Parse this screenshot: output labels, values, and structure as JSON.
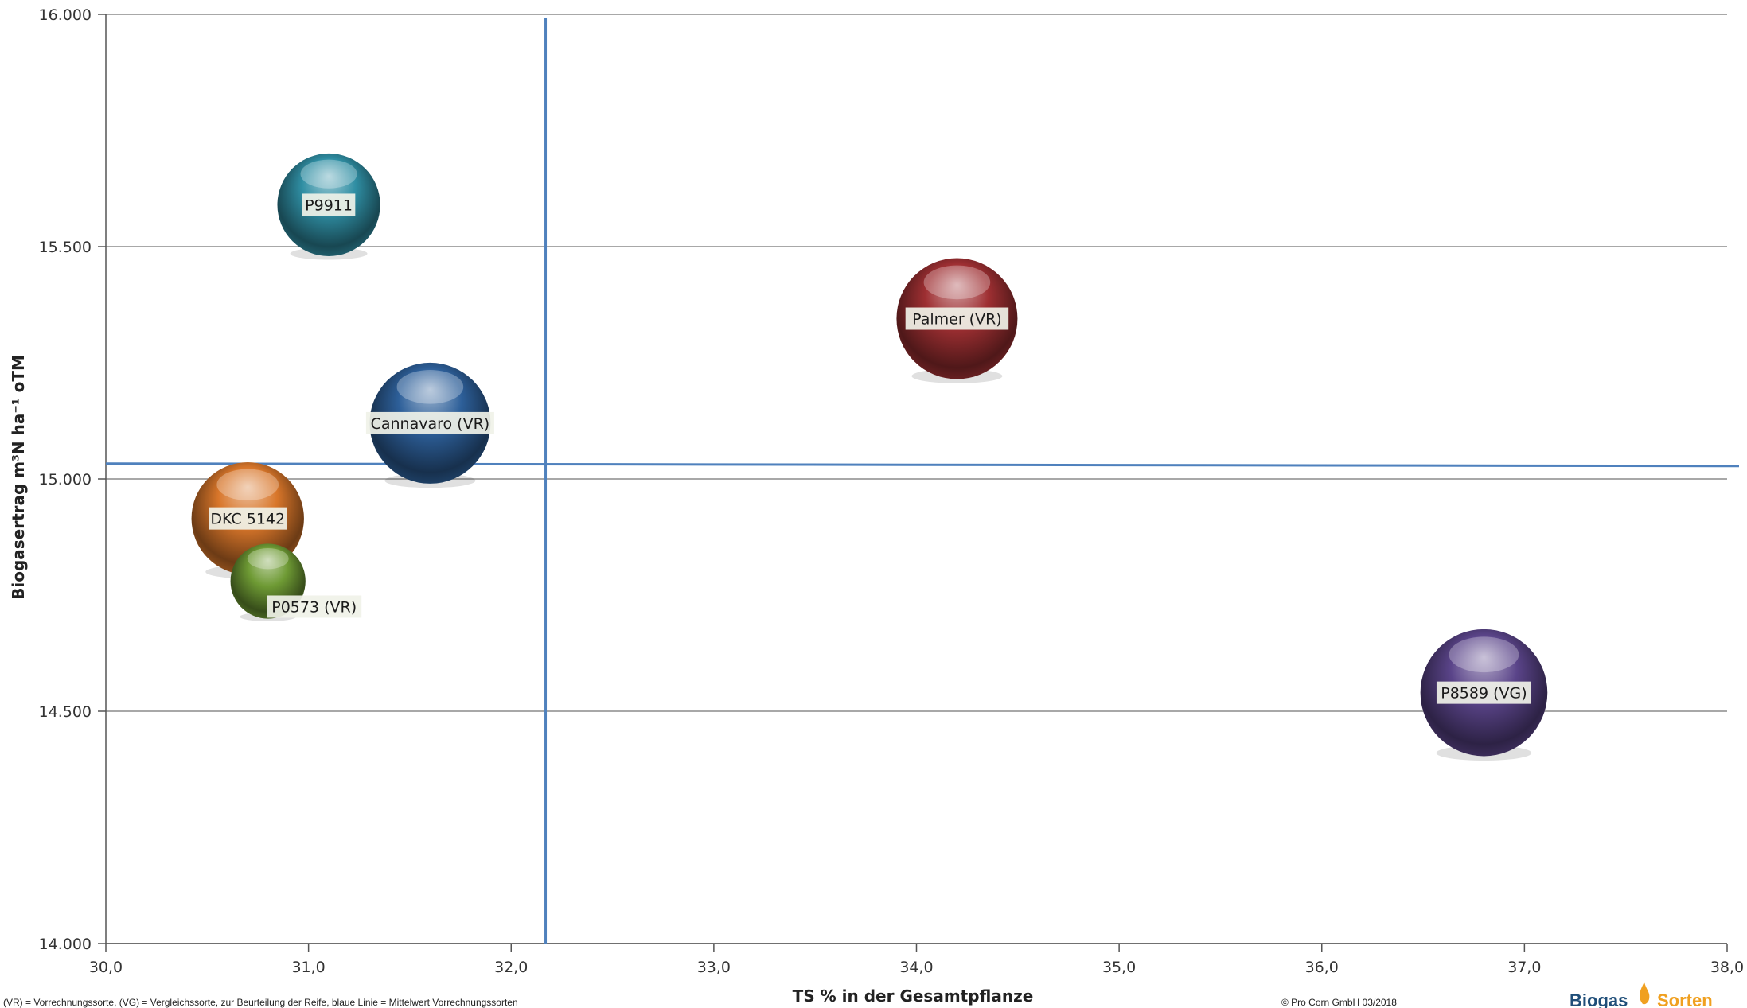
{
  "chart_data": {
    "type": "bubble",
    "xlabel": "TS % in der Gesamtpflanze",
    "ylabel": "Biogasertrag m³N ha⁻¹ oTM",
    "xlim": [
      30.0,
      38.0
    ],
    "ylim": [
      14000,
      16000
    ],
    "x_ticks": [
      "30,0",
      "31,0",
      "32,0",
      "33,0",
      "34,0",
      "35,0",
      "36,0",
      "37,0",
      "38,0"
    ],
    "y_ticks": [
      "14.000",
      "14.500",
      "15.000",
      "15.500",
      "16.000"
    ],
    "grid": "horizontal",
    "reference_lines": {
      "x": 32.17,
      "y": 15033
    },
    "points": [
      {
        "label": "P9911",
        "x": 31.1,
        "y": 15590,
        "size": 0.85,
        "color": "#2f8ea3"
      },
      {
        "label": "Palmer (VR)",
        "x": 34.2,
        "y": 15345,
        "size": 1.0,
        "color": "#9e2f32"
      },
      {
        "label": "Cannavaro (VR)",
        "x": 31.6,
        "y": 15120,
        "size": 1.0,
        "color": "#2d5f99"
      },
      {
        "label": "DKC 5142",
        "x": 30.7,
        "y": 14915,
        "size": 0.93,
        "color": "#d8762a"
      },
      {
        "label": "P0573 (VR)",
        "x": 30.8,
        "y": 14780,
        "size": 0.62,
        "color": "#6e9a34"
      },
      {
        "label": "P8589 (VG)",
        "x": 36.8,
        "y": 14540,
        "size": 1.05,
        "color": "#5a4489"
      }
    ]
  },
  "colors": {
    "reference_line": "#4f81bd",
    "grid": "#8c8c8c",
    "logo_orange": "#f0a020",
    "logo_blue": "#1f4e79"
  },
  "footer": {
    "footnote": "(VR) = Vorrechnungssorte, (VG) = Vergleichssorte, zur Beurteilung der Reife, blaue Linie = Mittelwert Vorrechnungssorten",
    "copyright": "© Pro Corn GmbH 03/2018",
    "logo_left": "Biogas",
    "logo_right": "Sorten"
  }
}
